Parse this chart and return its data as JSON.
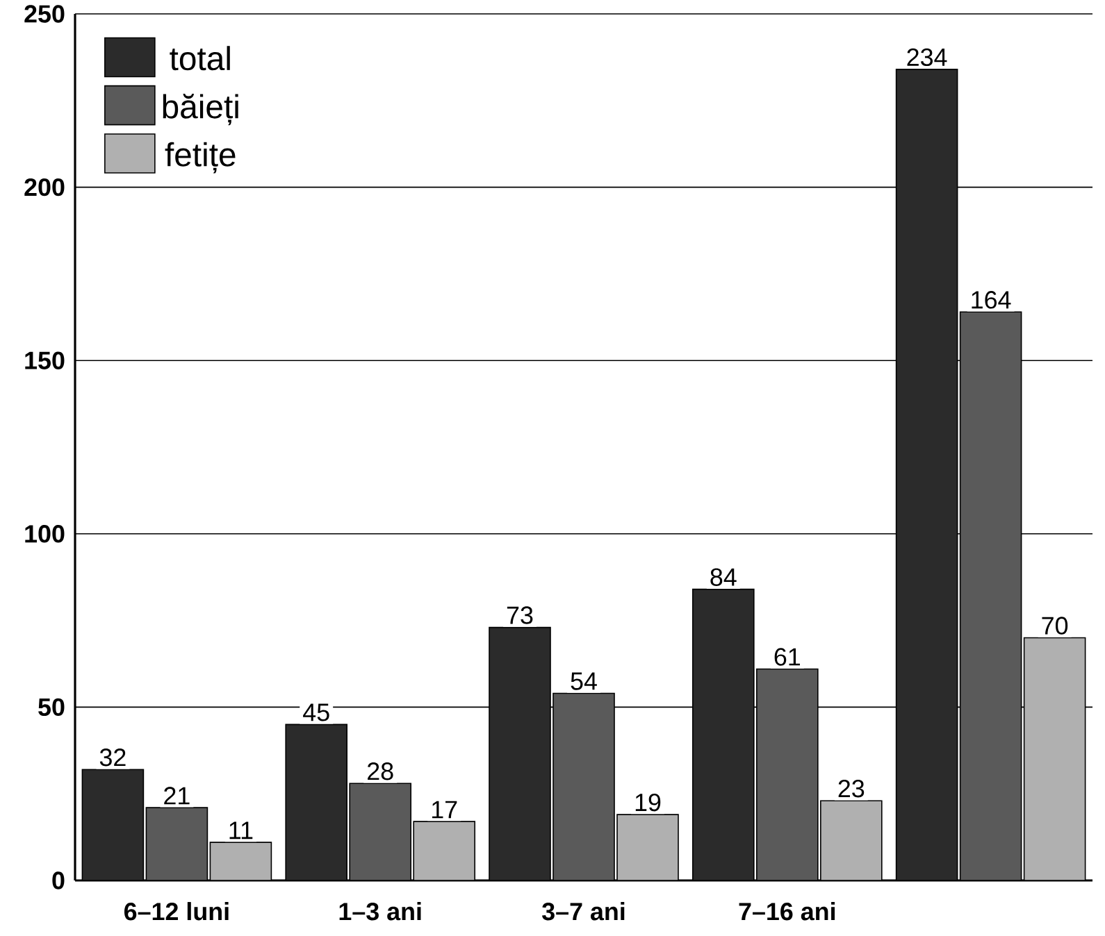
{
  "chart_data": {
    "type": "bar",
    "categories": [
      "6–12 luni",
      "1–3 ani",
      "3–7 ani",
      "7–16 ani",
      null
    ],
    "series": [
      {
        "name": "total",
        "color": "#2b2b2b",
        "values": [
          32,
          45,
          73,
          84,
          234
        ]
      },
      {
        "name": "băieți",
        "color": "#5a5a5a",
        "values": [
          21,
          28,
          54,
          61,
          164
        ]
      },
      {
        "name": "fetițe",
        "color": "#b0b0b0",
        "values": [
          11,
          17,
          19,
          23,
          70
        ]
      }
    ],
    "ylim": [
      0,
      250
    ],
    "yticks": [
      0,
      50,
      100,
      150,
      200,
      250
    ],
    "grid": "y",
    "legend": "top left",
    "data_labels": true
  }
}
